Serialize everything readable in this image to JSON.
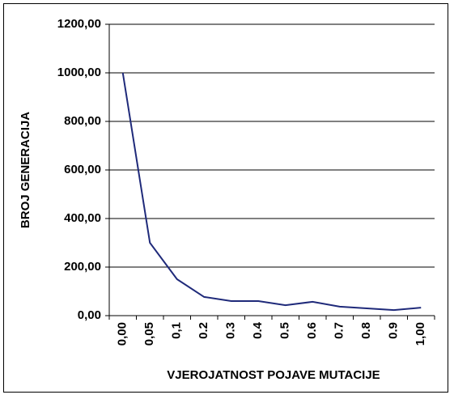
{
  "chart_data": {
    "type": "line",
    "x_label": "VJEROJATNOST POJAVE MUTACIJE",
    "y_label": "BROJ GENERACIJA",
    "categories": [
      "0,00",
      "0,05",
      "0,1",
      "0.2",
      "0.3",
      "0.4",
      "0.5",
      "0.6",
      "0.7",
      "0.8",
      "0.9",
      "1,00"
    ],
    "series": [
      {
        "name": null,
        "color": "#1f2a7a",
        "values": [
          1000,
          300,
          150,
          77,
          60,
          60,
          43,
          57,
          37,
          30,
          23,
          33
        ]
      }
    ],
    "ylim": [
      0,
      1200
    ],
    "yticks": [
      {
        "value": 0,
        "label": "0,00"
      },
      {
        "value": 200,
        "label": "200,00"
      },
      {
        "value": 400,
        "label": "400,00"
      },
      {
        "value": 600,
        "label": "600,00"
      },
      {
        "value": 800,
        "label": "800,00"
      },
      {
        "value": 1000,
        "label": "1000,00"
      },
      {
        "value": 1200,
        "label": "1200,00"
      }
    ],
    "grid": true
  }
}
